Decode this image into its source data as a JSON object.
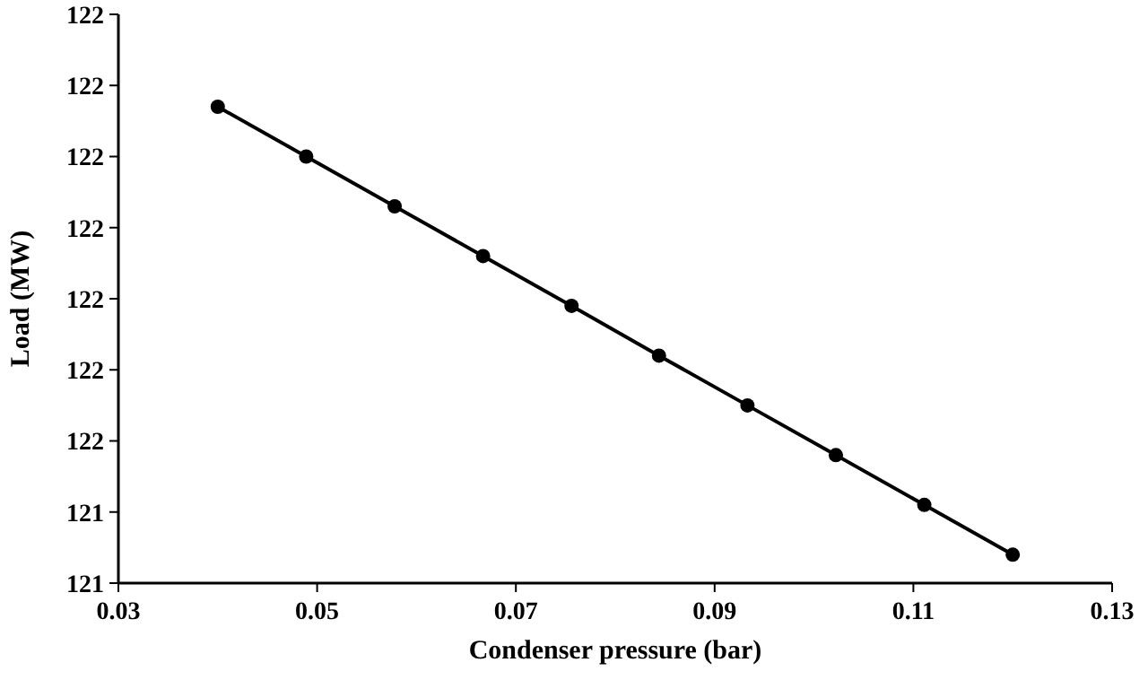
{
  "chart_data": {
    "type": "line",
    "xlabel": "Condenser pressure (bar)",
    "ylabel": "Load (MW)",
    "x": [
      0.04,
      0.0489,
      0.0578,
      0.0667,
      0.0756,
      0.0844,
      0.0933,
      0.1022,
      0.1111,
      0.12
    ],
    "series": [
      {
        "color": "#000000",
        "values": [
          121.97,
          121.9,
          121.83,
          121.76,
          121.69,
          121.62,
          121.55,
          121.48,
          121.41,
          121.34
        ]
      }
    ],
    "xlim": [
      0.03,
      0.13
    ],
    "xticks": [
      {
        "value": 0.03,
        "label": "0.03"
      },
      {
        "value": 0.05,
        "label": "0.05"
      },
      {
        "value": 0.07,
        "label": "0.07"
      },
      {
        "value": 0.09,
        "label": "0.09"
      },
      {
        "value": 0.11,
        "label": "0.11"
      },
      {
        "value": 0.13,
        "label": "0.13"
      }
    ],
    "ylim": [
      121.3,
      122.1
    ],
    "yticks": [
      {
        "value": 121.3,
        "label": "121"
      },
      {
        "value": 121.4,
        "label": "121"
      },
      {
        "value": 121.5,
        "label": "122"
      },
      {
        "value": 121.6,
        "label": "122"
      },
      {
        "value": 121.7,
        "label": "122"
      },
      {
        "value": 121.8,
        "label": "122"
      },
      {
        "value": 121.9,
        "label": "122"
      },
      {
        "value": 122.0,
        "label": "122"
      },
      {
        "value": 122.1,
        "label": "122"
      }
    ],
    "marker": "circle",
    "line_style": "solid"
  }
}
